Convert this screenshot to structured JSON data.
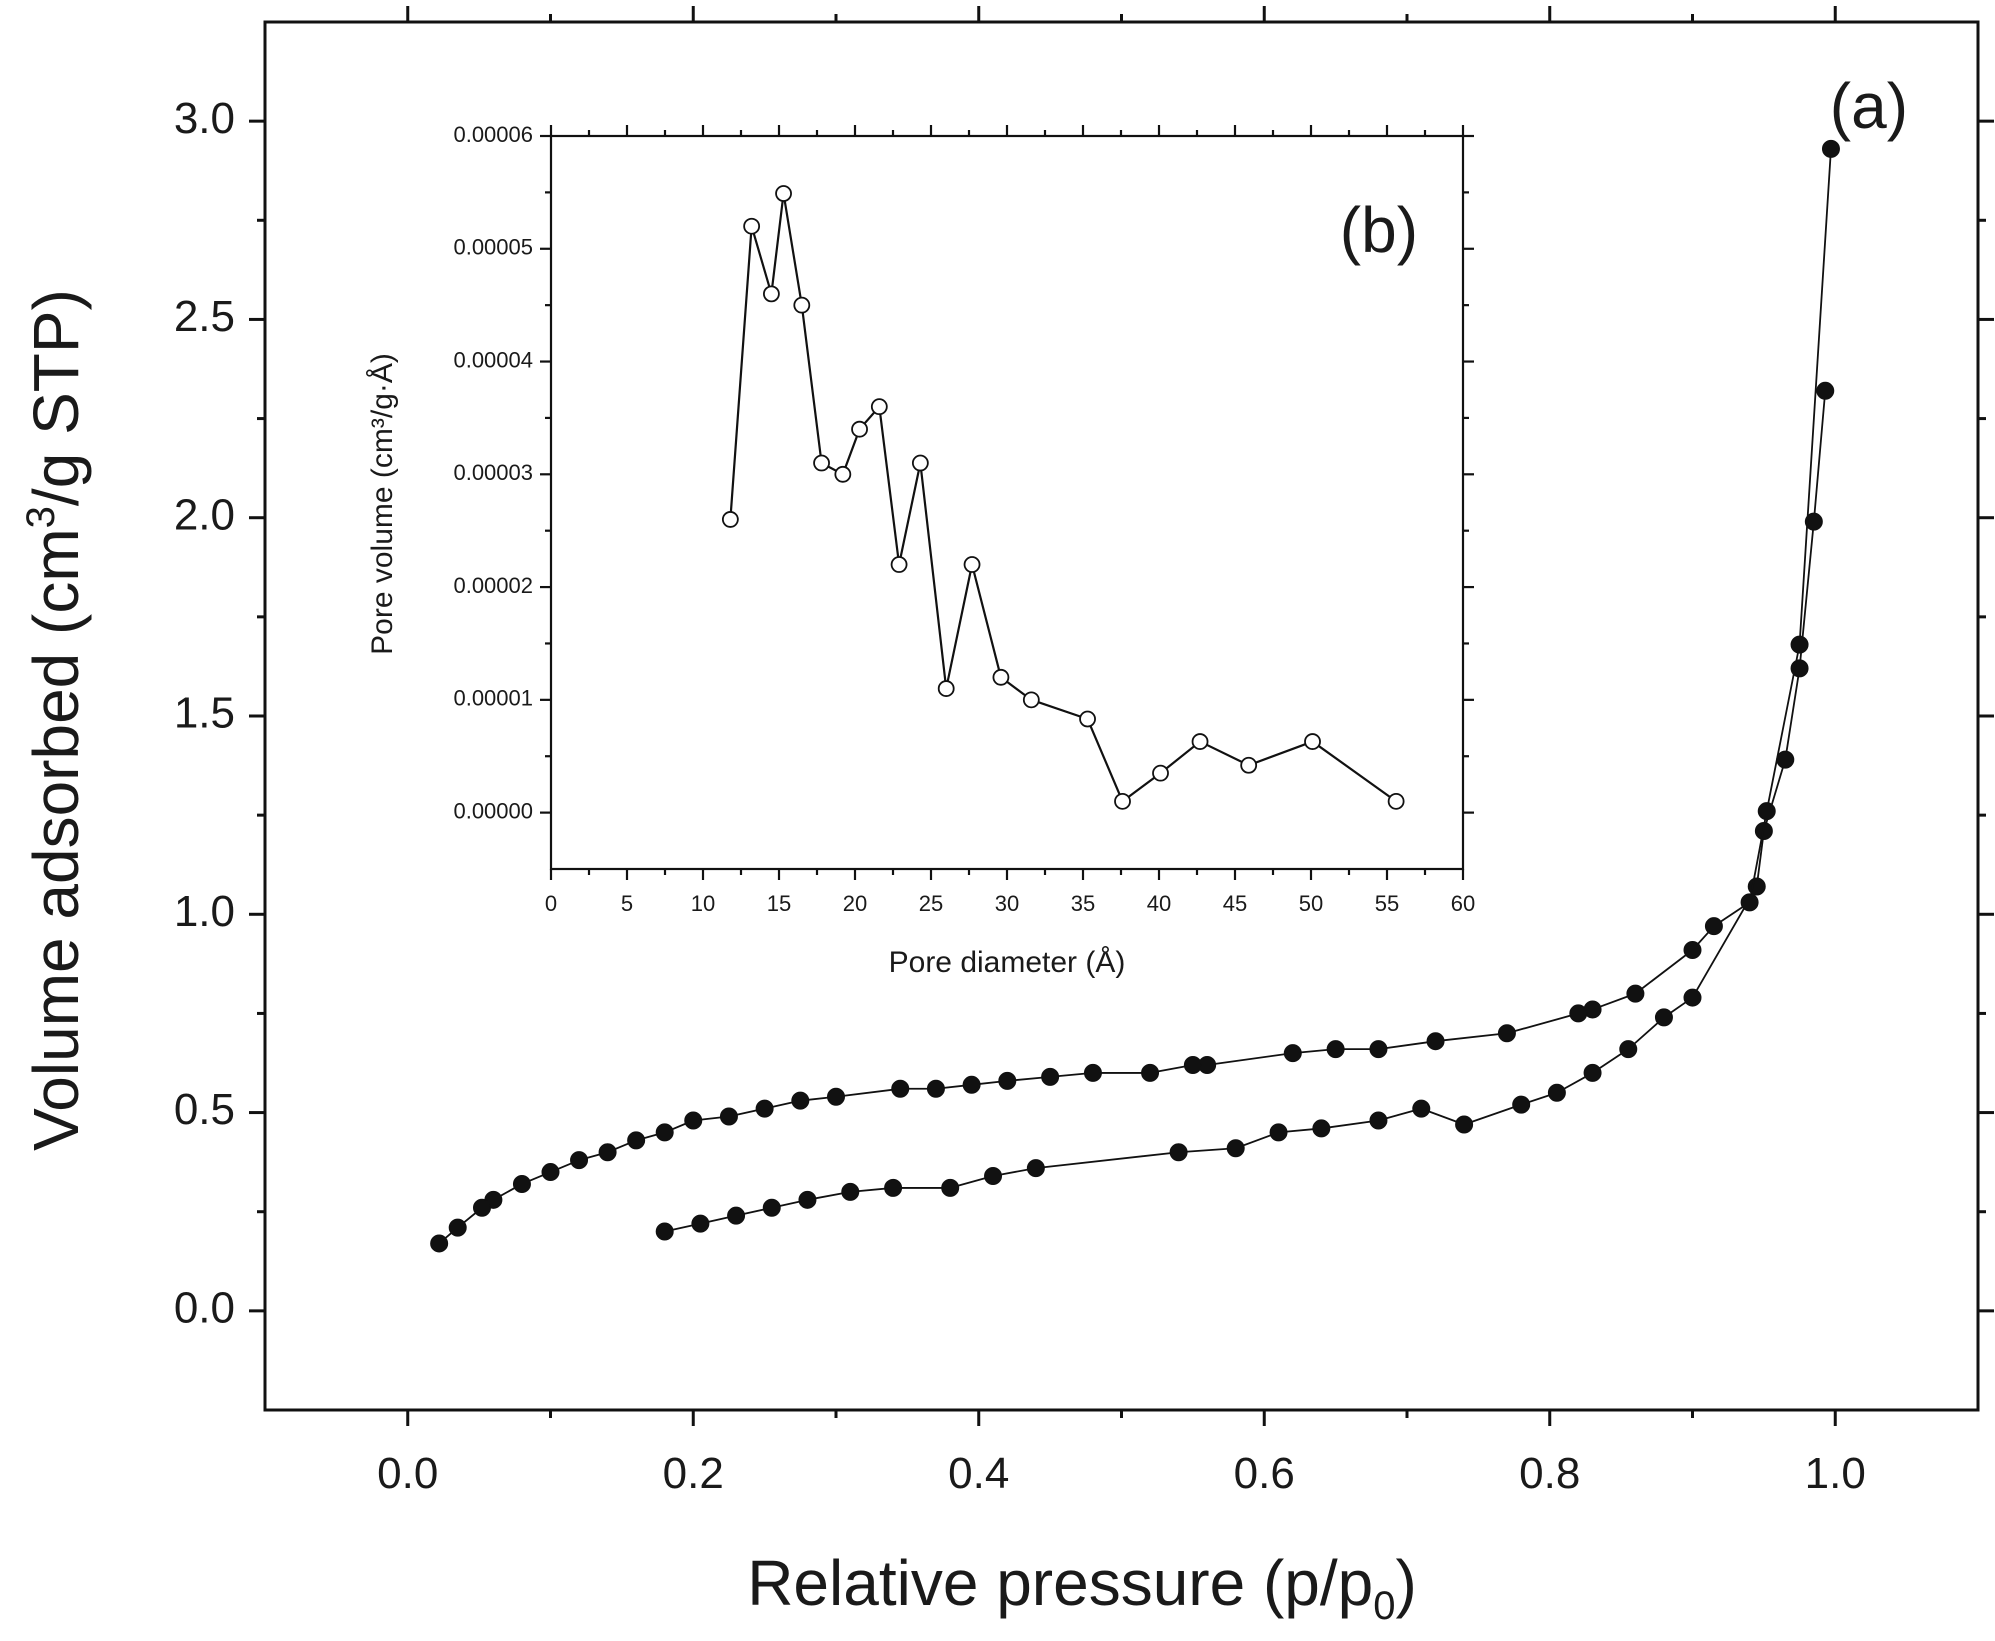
{
  "chart_data": [
    {
      "id": "main",
      "type": "line",
      "panel_label": "(a)",
      "xlabel": "Relative pressure (p/p",
      "xlabel_sub": "0",
      "xlabel_end": ")",
      "ylabel": "Volume adsorbed (cm",
      "ylabel_sup": "3",
      "ylabel_end": "/g STP)",
      "xlim": [
        -0.1,
        1.1
      ],
      "ylim": [
        -0.25,
        3.25
      ],
      "xticks": [
        0.0,
        0.2,
        0.4,
        0.6,
        0.8,
        1.0
      ],
      "xtick_labels": [
        "0.0",
        "0.2",
        "0.4",
        "0.6",
        "0.8",
        "1.0"
      ],
      "yticks": [
        0.0,
        0.5,
        1.0,
        1.5,
        2.0,
        2.5,
        3.0
      ],
      "ytick_labels": [
        "0.0",
        "0.5",
        "1.0",
        "1.5",
        "2.0",
        "2.5",
        "3.0"
      ],
      "grid": false,
      "series": [
        {
          "name": "adsorption",
          "marker": "filled-circle",
          "color": "#111111",
          "x": [
            0.18,
            0.205,
            0.23,
            0.255,
            0.28,
            0.31,
            0.34,
            0.38,
            0.41,
            0.44,
            0.54,
            0.58,
            0.61,
            0.64,
            0.68,
            0.71,
            0.74,
            0.78,
            0.805,
            0.83,
            0.855,
            0.88,
            0.9,
            0.945,
            0.95,
            0.965,
            0.975,
            0.985,
            0.993
          ],
          "y": [
            0.2,
            0.22,
            0.24,
            0.26,
            0.28,
            0.3,
            0.31,
            0.31,
            0.34,
            0.36,
            0.4,
            0.41,
            0.45,
            0.46,
            0.48,
            0.51,
            0.47,
            0.52,
            0.55,
            0.6,
            0.66,
            0.74,
            0.79,
            1.07,
            1.21,
            1.39,
            1.62,
            1.99,
            2.32
          ]
        },
        {
          "name": "desorption",
          "marker": "filled-circle",
          "color": "#111111",
          "x": [
            0.997,
            0.975,
            0.952,
            0.94,
            0.915,
            0.9,
            0.86,
            0.83,
            0.82,
            0.77,
            0.72,
            0.68,
            0.65,
            0.62,
            0.56,
            0.55,
            0.52,
            0.48,
            0.45,
            0.42,
            0.395,
            0.37,
            0.345,
            0.3,
            0.275,
            0.25,
            0.225,
            0.2,
            0.18,
            0.16,
            0.14,
            0.12,
            0.1,
            0.08,
            0.06,
            0.052,
            0.035,
            0.022
          ],
          "y": [
            2.93,
            1.68,
            1.26,
            1.03,
            0.97,
            0.91,
            0.8,
            0.76,
            0.75,
            0.7,
            0.68,
            0.66,
            0.66,
            0.65,
            0.62,
            0.62,
            0.6,
            0.6,
            0.59,
            0.58,
            0.57,
            0.56,
            0.56,
            0.54,
            0.53,
            0.51,
            0.49,
            0.48,
            0.45,
            0.43,
            0.4,
            0.38,
            0.35,
            0.32,
            0.28,
            0.26,
            0.21,
            0.17
          ]
        }
      ]
    },
    {
      "id": "inset",
      "type": "line",
      "panel_label": "(b)",
      "xlabel": "Pore diameter (Å)",
      "ylabel": "Pore volume (cm³/g·Å)",
      "xlim": [
        0,
        60
      ],
      "ylim": [
        -5e-06,
        6e-05
      ],
      "xticks": [
        0,
        5,
        10,
        15,
        20,
        25,
        30,
        35,
        40,
        45,
        50,
        55,
        60
      ],
      "xtick_labels": [
        "0",
        "5",
        "10",
        "15",
        "20",
        "25",
        "30",
        "35",
        "40",
        "45",
        "50",
        "55",
        "60"
      ],
      "yticks": [
        0.0,
        1e-05,
        2e-05,
        3e-05,
        4e-05,
        5e-05,
        6e-05
      ],
      "ytick_labels": [
        "0.00000",
        "0.00001",
        "0.00002",
        "0.00003",
        "0.00004",
        "0.00005",
        "0.00006"
      ],
      "grid": false,
      "series": [
        {
          "name": "pore size distribution",
          "marker": "open-circle",
          "color": "#111111",
          "x": [
            11.8,
            13.2,
            14.5,
            15.3,
            16.5,
            17.8,
            19.2,
            20.3,
            21.6,
            22.9,
            24.3,
            26.0,
            27.7,
            29.6,
            31.6,
            35.3,
            37.6,
            40.1,
            42.7,
            45.9,
            50.1,
            55.6
          ],
          "y": [
            2.6e-05,
            5.2e-05,
            4.6e-05,
            5.49e-05,
            4.5e-05,
            3.1e-05,
            3e-05,
            3.4e-05,
            3.6e-05,
            2.2e-05,
            3.1e-05,
            1.1e-05,
            2.2e-05,
            1.2e-05,
            1e-05,
            8.3e-06,
            1e-06,
            3.5e-06,
            6.3e-06,
            4.2e-06,
            6.3e-06,
            1e-06
          ]
        }
      ]
    }
  ]
}
